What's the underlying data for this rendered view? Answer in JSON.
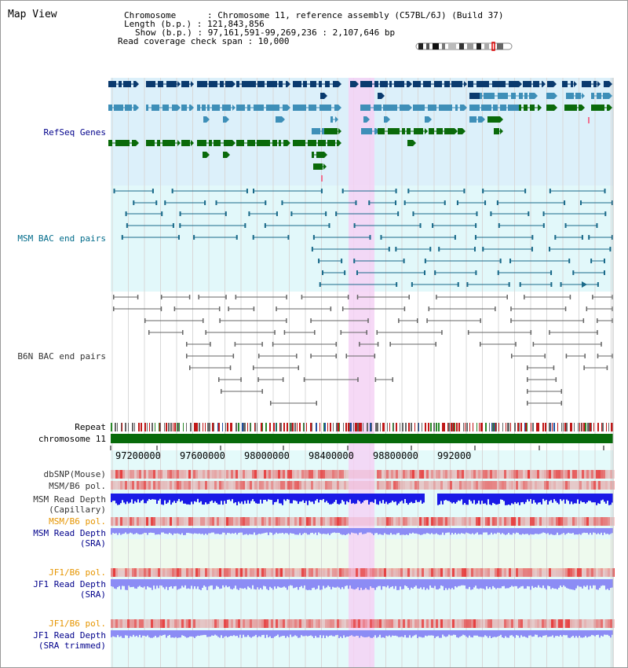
{
  "view_title": "Map View",
  "info": {
    "line1": "Chromosome      : Chromosome 11, reference assembly (C57BL/6J) (Build 37)",
    "line2": "Length (b.p.) : 121,843,856",
    "line3": "Show (b.p.) : 97,161,591-99,269,236 : 2,107,646 bp",
    "line4": "Read coverage check span : 10,000"
  },
  "tracks": {
    "refseq": "RefSeq Genes",
    "msm_bac": "MSM BAC end pairs",
    "b6n_bac": "B6N BAC end pairs",
    "repeat": "Repeat",
    "chromosome": "chromosome 11",
    "dbsnp": "dbSNP(Mouse)",
    "msm_pol1": "MSM/B6 pol.",
    "msm_depth_cap": "MSM Read Depth\n(Capillary)",
    "msm_pol2": "MSM/B6 pol.",
    "msm_depth_sra": "MSM Read Depth\n(SRA)",
    "jf1_pol1": "JF1/B6 pol.",
    "jf1_depth_sra": "JF1 Read Depth\n(SRA)",
    "jf1_pol2": "JF1/B6 pol.",
    "jf1_depth_trim": "JF1 Read Depth\n(SRA trimmed)"
  },
  "axis_ticks": [
    "97200000",
    "97600000",
    "98000000",
    "98400000",
    "98800000",
    "992000"
  ],
  "colors": {
    "refseq_dark": "#0a3a6e",
    "refseq_mid": "#3e8fb8",
    "refseq_green": "#0a6a0a",
    "refseq_bg": "#dcf0fa",
    "msm_bg": "#e2f8fa",
    "msm_line": "#1a6a8a",
    "highlight": "#f5d2f5",
    "depth_blue": "#1a1ae6",
    "depth_light": "#8c8cf5",
    "snp_red": "#e63c3c",
    "label_dark_blue": "#00008b",
    "label_teal": "#006b8a",
    "label_orange": "#e69500"
  }
}
